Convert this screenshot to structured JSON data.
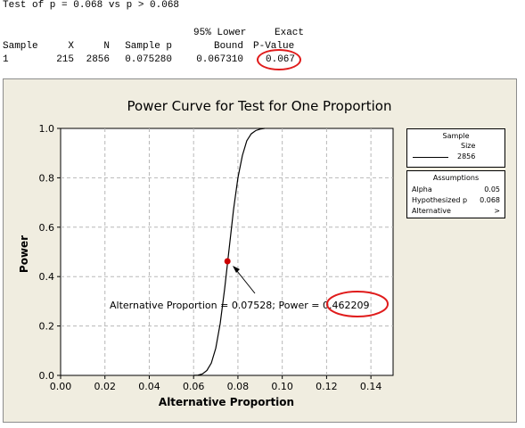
{
  "session": {
    "header": "Test of p = 0.068 vs p > 0.068",
    "col_top_lower": "95% Lower",
    "col_top_exact": "Exact",
    "columns": [
      "Sample",
      "X",
      "N",
      "Sample p",
      "Bound",
      "P-Value"
    ],
    "row": [
      "1",
      "215",
      "2856",
      "0.075280",
      "0.067310",
      "0.067"
    ]
  },
  "legend": {
    "sample_title_1": "Sample",
    "sample_title_2": "Size",
    "sample_value": "2856",
    "assumptions_title": "Assumptions",
    "assumptions": [
      {
        "label": "Alpha",
        "value": "0.05"
      },
      {
        "label": "Hypothesized p",
        "value": "0.068"
      },
      {
        "label": "Alternative",
        "value": ">"
      }
    ]
  },
  "colors": {
    "annotation_circle": "#e01b1b",
    "marker": "#cc0000",
    "background": "#f0ede0",
    "grid": "#b8b8b8"
  },
  "chart_data": {
    "type": "line",
    "title": "Power Curve for Test for One Proportion",
    "xlabel": "Alternative Proportion",
    "ylabel": "Power",
    "xlim": [
      0.0,
      0.15
    ],
    "ylim": [
      0.0,
      1.0
    ],
    "xticks": [
      "0.00",
      "0.02",
      "0.04",
      "0.06",
      "0.08",
      "0.10",
      "0.12",
      "0.14"
    ],
    "yticks": [
      "0.0",
      "0.2",
      "0.4",
      "0.6",
      "0.8",
      "1.0"
    ],
    "grid": true,
    "x": [
      0.06,
      0.062,
      0.064,
      0.066,
      0.068,
      0.07,
      0.072,
      0.074,
      0.076,
      0.078,
      0.08,
      0.082,
      0.084,
      0.086,
      0.088,
      0.09,
      0.092
    ],
    "y": [
      0.0,
      0.001,
      0.006,
      0.02,
      0.05,
      0.11,
      0.21,
      0.35,
      0.51,
      0.67,
      0.8,
      0.89,
      0.95,
      0.978,
      0.991,
      0.997,
      1.0
    ],
    "highlight_point": {
      "x": 0.07528,
      "y": 0.462209
    },
    "annotation": {
      "prefix": "Alternative Proportion = 0.07528; Power = ",
      "value": "0.462209"
    }
  }
}
